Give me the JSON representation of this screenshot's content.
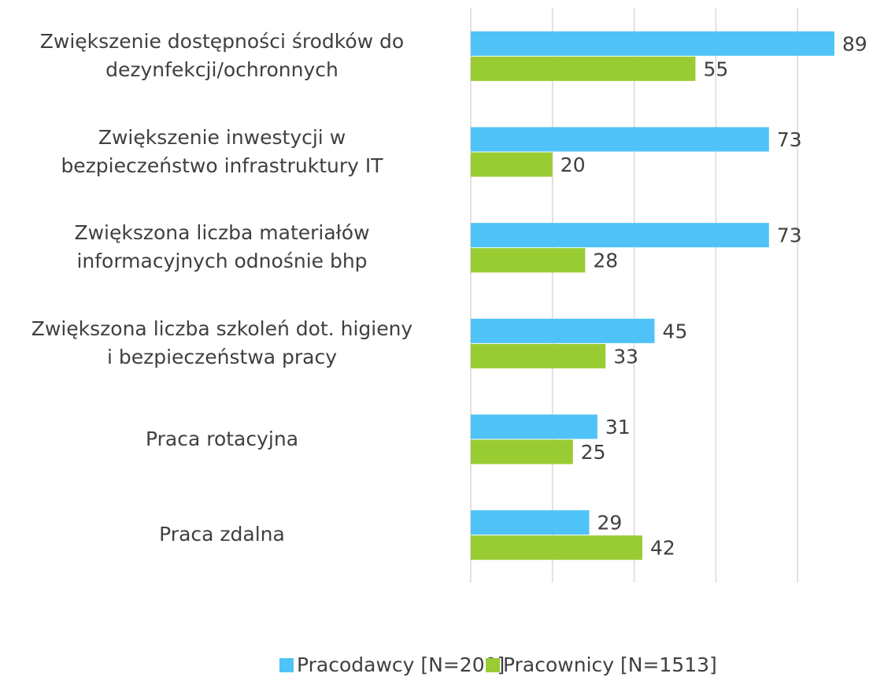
{
  "chart_data": {
    "type": "barh",
    "categories": [
      "Zwiększenie dostępności środków do\ndezynfekcji/ochronnych",
      "Zwiększenie inwestycji w\nbezpieczeństwo infrastruktury IT",
      "Zwiększona liczba materiałów\ninformacyjnych odnośnie bhp",
      "Zwiększona liczba szkoleń dot. higieny\ni bezpieczeństwa pracy",
      "Praca rotacyjna",
      "Praca zdalna"
    ],
    "series": [
      {
        "name": "Pracodawcy [N=200]",
        "color": "#4fc3f7",
        "values": [
          89,
          73,
          73,
          45,
          31,
          29
        ]
      },
      {
        "name": "Pracownicy [N=1513]",
        "color": "#99cc33",
        "values": [
          55,
          20,
          28,
          33,
          25,
          42
        ]
      }
    ],
    "xlim": [
      0,
      100
    ],
    "xticks": [
      0,
      20,
      40,
      60,
      80
    ],
    "grid": true,
    "legend": "bottom"
  }
}
